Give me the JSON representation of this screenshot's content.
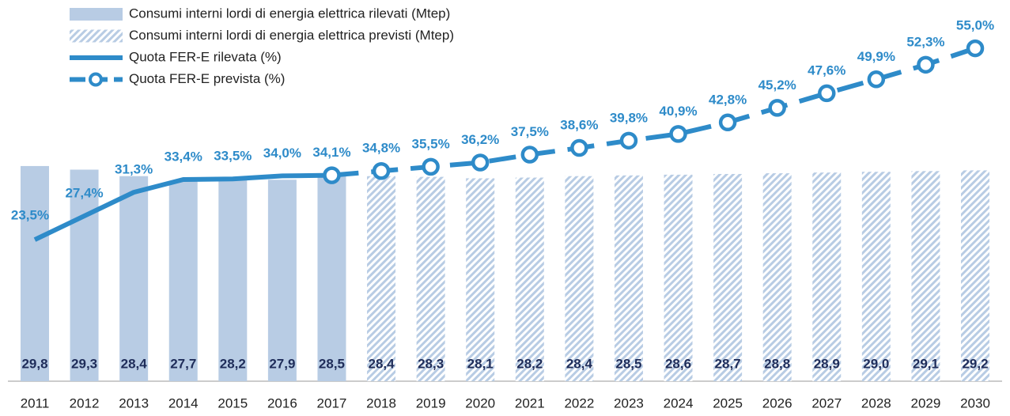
{
  "chart_data": {
    "type": "bar",
    "categories": [
      "2011",
      "2012",
      "2013",
      "2014",
      "2015",
      "2016",
      "2017",
      "2018",
      "2019",
      "2020",
      "2021",
      "2022",
      "2023",
      "2024",
      "2025",
      "2026",
      "2027",
      "2028",
      "2029",
      "2030"
    ],
    "series": [
      {
        "name": "Consumi interni lordi di energia elettrica rilevati (Mtep)",
        "type": "bar",
        "color": "#b8cce4",
        "values": [
          29.8,
          29.3,
          28.4,
          27.7,
          28.2,
          27.9,
          28.5,
          null,
          null,
          null,
          null,
          null,
          null,
          null,
          null,
          null,
          null,
          null,
          null,
          null
        ],
        "value_labels": [
          "29,8",
          "29,3",
          "28,4",
          "27,7",
          "28,2",
          "27,9",
          "28,5",
          null,
          null,
          null,
          null,
          null,
          null,
          null,
          null,
          null,
          null,
          null,
          null,
          null
        ]
      },
      {
        "name": "Consumi interni lordi di energia elettrica previsti (Mtep)",
        "type": "bar",
        "color": "#b8cce4",
        "pattern": "hatch",
        "values": [
          null,
          null,
          null,
          null,
          null,
          null,
          null,
          28.4,
          28.3,
          28.1,
          28.2,
          28.4,
          28.5,
          28.6,
          28.7,
          28.8,
          28.9,
          29.0,
          29.1,
          29.2
        ],
        "value_labels": [
          null,
          null,
          null,
          null,
          null,
          null,
          null,
          "28,4",
          "28,3",
          "28,1",
          "28,2",
          "28,4",
          "28,5",
          "28,6",
          "28,7",
          "28,8",
          "28,9",
          "29,0",
          "29,1",
          "29,2"
        ]
      },
      {
        "name": "Quota FER-E rilevata (%)",
        "type": "line",
        "color": "#2e8bc9",
        "values": [
          23.5,
          27.4,
          31.3,
          33.4,
          33.5,
          34.0,
          34.1,
          null,
          null,
          null,
          null,
          null,
          null,
          null,
          null,
          null,
          null,
          null,
          null,
          null
        ],
        "value_labels": [
          "23,5%",
          "27,4%",
          "31,3%",
          "33,4%",
          "33,5%",
          "34,0%",
          "34,1%",
          null,
          null,
          null,
          null,
          null,
          null,
          null,
          null,
          null,
          null,
          null,
          null,
          null
        ]
      },
      {
        "name": "Quota FER-E prevista (%)",
        "type": "line",
        "color": "#2e8bc9",
        "dashed": true,
        "markers": true,
        "values": [
          null,
          null,
          null,
          null,
          null,
          null,
          34.1,
          34.8,
          35.5,
          36.2,
          37.5,
          38.6,
          39.8,
          40.9,
          42.8,
          45.2,
          47.6,
          49.9,
          52.3,
          55.0
        ],
        "value_labels": [
          null,
          null,
          null,
          null,
          null,
          null,
          null,
          "34,8%",
          "35,5%",
          "36,2%",
          "37,5%",
          "38,6%",
          "39,8%",
          "40,9%",
          "42,8%",
          "45,2%",
          "47,6%",
          "49,9%",
          "52,3%",
          "55,0%"
        ]
      }
    ]
  }
}
